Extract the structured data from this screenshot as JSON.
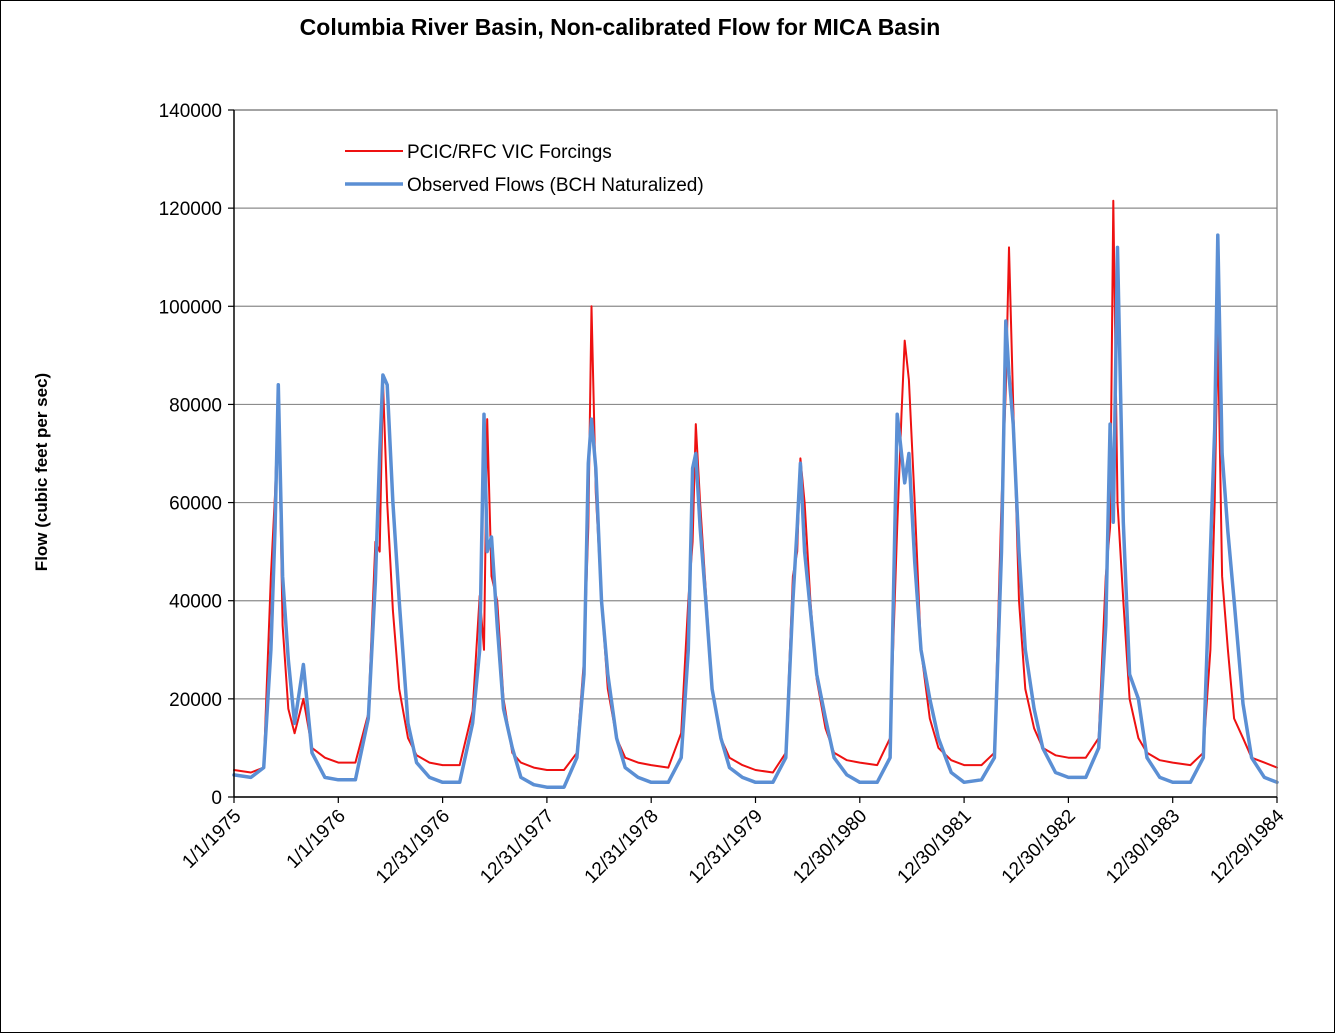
{
  "chart_data": {
    "type": "line",
    "title": "Columbia River Basin, Non-calibrated Flow for MICA Basin",
    "xlabel": "",
    "ylabel": "Flow (cubic feet per sec)",
    "ylim": [
      0,
      140000
    ],
    "yticks": [
      "0",
      "20000",
      "40000",
      "60000",
      "80000",
      "100000",
      "120000",
      "140000"
    ],
    "xticks": [
      "1/1/1975",
      "1/1/1976",
      "12/31/1976",
      "12/31/1977",
      "12/31/1978",
      "12/31/1979",
      "12/30/1980",
      "12/30/1981",
      "12/30/1982",
      "12/30/1983",
      "12/29/1984"
    ],
    "xlim": [
      "1/1/1975",
      "12/29/1984"
    ],
    "grid": true,
    "legend_position": "top-left",
    "series": [
      {
        "name": "PCIC/RFC VIC Forcings",
        "color": "#ee1111",
        "x": [
          "1/1/1975",
          "3/1/1975",
          "4/15/1975",
          "5/10/1975",
          "5/25/1975",
          "6/5/1975",
          "6/20/1975",
          "7/10/1975",
          "8/1/1975",
          "9/1/1975",
          "10/1/1975",
          "11/15/1975",
          "1/1/1976",
          "3/1/1976",
          "4/15/1976",
          "5/10/1976",
          "5/25/1976",
          "6/5/1976",
          "6/20/1976",
          "7/10/1976",
          "8/1/1976",
          "9/1/1976",
          "10/1/1976",
          "11/15/1976",
          "12/31/1976",
          "3/1/1977",
          "4/15/1977",
          "5/10/1977",
          "5/25/1977",
          "6/5/1977",
          "6/20/1977",
          "7/10/1977",
          "8/1/1977",
          "9/1/1977",
          "10/1/1977",
          "11/15/1977",
          "12/31/1977",
          "3/1/1978",
          "4/15/1978",
          "5/10/1978",
          "5/25/1978",
          "6/5/1978",
          "6/20/1978",
          "7/10/1978",
          "8/1/1978",
          "9/1/1978",
          "10/1/1978",
          "11/15/1978",
          "12/31/1978",
          "3/1/1979",
          "4/15/1979",
          "5/10/1979",
          "5/25/1979",
          "6/5/1979",
          "6/20/1979",
          "7/10/1979",
          "8/1/1979",
          "9/1/1979",
          "10/1/1979",
          "11/15/1979",
          "12/31/1979",
          "3/1/1980",
          "4/15/1980",
          "5/10/1980",
          "5/25/1980",
          "6/5/1980",
          "6/20/1980",
          "7/10/1980",
          "8/1/1980",
          "9/1/1980",
          "10/1/1980",
          "11/15/1980",
          "12/30/1980",
          "3/1/1981",
          "4/15/1981",
          "5/10/1981",
          "5/25/1981",
          "6/5/1981",
          "6/20/1981",
          "7/10/1981",
          "8/1/1981",
          "9/1/1981",
          "10/1/1981",
          "11/15/1981",
          "12/30/1981",
          "3/1/1982",
          "4/15/1982",
          "5/10/1982",
          "5/25/1982",
          "6/5/1982",
          "6/20/1982",
          "7/10/1982",
          "8/1/1982",
          "9/1/1982",
          "10/1/1982",
          "11/15/1982",
          "12/30/1982",
          "3/1/1983",
          "4/15/1983",
          "5/10/1983",
          "5/25/1983",
          "6/5/1983",
          "6/20/1983",
          "7/10/1983",
          "8/1/1983",
          "9/1/1983",
          "10/1/1983",
          "11/15/1983",
          "12/30/1983",
          "3/1/1984",
          "4/15/1984",
          "5/10/1984",
          "5/25/1984",
          "6/5/1984",
          "6/20/1984",
          "7/10/1984",
          "8/1/1984",
          "9/1/1984",
          "10/1/1984",
          "11/15/1984",
          "12/29/1984"
        ],
        "values": [
          5500,
          5000,
          6000,
          45000,
          62000,
          82000,
          35000,
          18000,
          13000,
          20000,
          10000,
          8000,
          7000,
          7000,
          17000,
          52000,
          50000,
          85000,
          60000,
          38000,
          22000,
          12000,
          8500,
          7000,
          6500,
          6500,
          17500,
          41000,
          30000,
          77000,
          45000,
          40000,
          20000,
          9000,
          7000,
          6000,
          5500,
          5500,
          9000,
          28000,
          55000,
          100000,
          62000,
          40000,
          22000,
          12000,
          8000,
          7000,
          6500,
          6000,
          13000,
          40000,
          52000,
          76000,
          60000,
          42000,
          22000,
          12000,
          8000,
          6500,
          5500,
          5000,
          9000,
          45000,
          50000,
          69000,
          60000,
          40000,
          24000,
          14000,
          9000,
          7500,
          7000,
          6500,
          12000,
          55000,
          78000,
          93000,
          85000,
          60000,
          30000,
          16000,
          10000,
          7500,
          6500,
          6500,
          9000,
          60000,
          83000,
          112000,
          80000,
          40000,
          22000,
          14000,
          10000,
          8500,
          8000,
          8000,
          12000,
          45000,
          55000,
          121500,
          60000,
          40000,
          20000,
          12000,
          9000,
          7500,
          7000,
          6500,
          9000,
          30000,
          60000,
          95500,
          45000,
          30000,
          16000,
          12000,
          8000,
          7000,
          6000
        ]
      },
      {
        "name": "Observed Flows (BCH Naturalized)",
        "color": "#5b8fd4",
        "x": [
          "1/1/1975",
          "3/1/1975",
          "4/15/1975",
          "5/10/1975",
          "5/25/1975",
          "6/5/1975",
          "6/20/1975",
          "7/10/1975",
          "8/1/1975",
          "9/1/1975",
          "10/1/1975",
          "11/15/1975",
          "1/1/1976",
          "3/1/1976",
          "4/15/1976",
          "5/10/1976",
          "5/25/1976",
          "6/5/1976",
          "6/20/1976",
          "7/10/1976",
          "8/1/1976",
          "9/1/1976",
          "10/1/1976",
          "11/15/1976",
          "12/31/1976",
          "3/1/1977",
          "4/15/1977",
          "5/10/1977",
          "5/25/1977",
          "6/5/1977",
          "6/20/1977",
          "7/10/1977",
          "8/1/1977",
          "9/1/1977",
          "10/1/1977",
          "11/15/1977",
          "12/31/1977",
          "3/1/1978",
          "4/15/1978",
          "5/10/1978",
          "5/25/1978",
          "6/5/1978",
          "6/20/1978",
          "7/10/1978",
          "8/1/1978",
          "9/1/1978",
          "10/1/1978",
          "11/15/1978",
          "12/31/1978",
          "3/1/1979",
          "4/15/1979",
          "5/10/1979",
          "5/25/1979",
          "6/5/1979",
          "6/20/1979",
          "7/10/1979",
          "8/1/1979",
          "9/1/1979",
          "10/1/1979",
          "11/15/1979",
          "12/31/1979",
          "3/1/1980",
          "4/15/1980",
          "5/10/1980",
          "5/25/1980",
          "6/5/1980",
          "6/20/1980",
          "7/10/1980",
          "8/1/1980",
          "9/1/1980",
          "10/1/1980",
          "11/15/1980",
          "12/30/1980",
          "3/1/1981",
          "4/15/1981",
          "5/10/1981",
          "5/25/1981",
          "6/5/1981",
          "6/20/1981",
          "7/10/1981",
          "8/1/1981",
          "9/1/1981",
          "10/1/1981",
          "11/15/1981",
          "12/30/1981",
          "3/1/1982",
          "4/15/1982",
          "5/10/1982",
          "5/25/1982",
          "6/5/1982",
          "6/20/1982",
          "7/10/1982",
          "8/1/1982",
          "9/1/1982",
          "10/1/1982",
          "11/15/1982",
          "12/30/1982",
          "3/1/1983",
          "4/15/1983",
          "5/10/1983",
          "5/25/1983",
          "6/5/1983",
          "6/20/1983",
          "7/10/1983",
          "8/1/1983",
          "9/1/1983",
          "10/1/1983",
          "11/15/1983",
          "12/30/1983",
          "3/1/1984",
          "4/15/1984",
          "5/10/1984",
          "5/25/1984",
          "6/5/1984",
          "6/20/1984",
          "7/10/1984",
          "8/1/1984",
          "9/1/1984",
          "10/1/1984",
          "11/15/1984",
          "12/29/1984"
        ],
        "values": [
          4500,
          4000,
          6000,
          30000,
          55000,
          84000,
          45000,
          28000,
          15000,
          27000,
          9000,
          4000,
          3500,
          3500,
          16000,
          44000,
          70000,
          86000,
          84000,
          60000,
          40000,
          15000,
          7000,
          4000,
          3000,
          3000,
          15000,
          30000,
          78000,
          50000,
          53000,
          35000,
          18000,
          10000,
          4000,
          2500,
          2000,
          2000,
          8000,
          25000,
          68000,
          77000,
          67000,
          40000,
          25000,
          12000,
          6000,
          4000,
          3000,
          3000,
          8000,
          30000,
          67000,
          70000,
          55000,
          40000,
          22000,
          12000,
          6000,
          4000,
          3000,
          3000,
          8000,
          40000,
          55000,
          68000,
          50000,
          38000,
          25000,
          16000,
          8000,
          4500,
          3000,
          3000,
          8000,
          78000,
          70000,
          64000,
          70000,
          48000,
          30000,
          20000,
          12000,
          5000,
          3000,
          3500,
          8000,
          50000,
          97000,
          86000,
          76000,
          50000,
          30000,
          18000,
          10000,
          5000,
          4000,
          4000,
          10000,
          35000,
          76000,
          56000,
          112000,
          56000,
          25000,
          20000,
          8000,
          4000,
          3000,
          3000,
          8000,
          50000,
          75000,
          114500,
          70000,
          54000,
          40000,
          19000,
          8000,
          4000,
          3000
        ]
      }
    ]
  }
}
